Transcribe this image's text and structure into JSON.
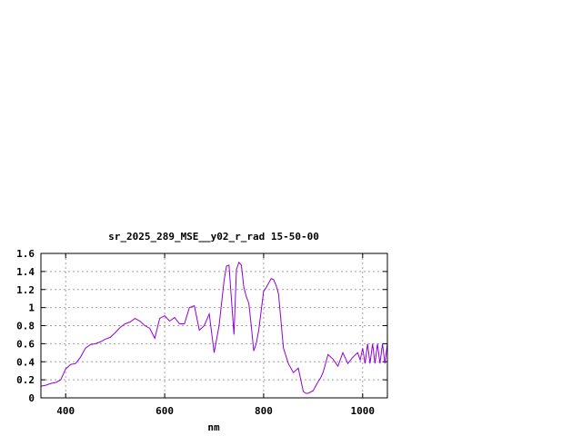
{
  "chart_data": {
    "type": "line",
    "title": "sr_2025_289_MSE__y02_r_rad 15-50-00",
    "xlabel": "nm",
    "ylabel": "",
    "xlim": [
      350,
      1050
    ],
    "ylim": [
      0,
      1.6
    ],
    "xticks": [
      400,
      600,
      800,
      1000
    ],
    "yticks": [
      0,
      0.2,
      0.4,
      0.6,
      0.8,
      1,
      1.2,
      1.4,
      1.6
    ],
    "ytick_labels": [
      "0",
      "0.2",
      "0.4",
      "0.6",
      "0.8",
      "1",
      "1.2",
      "1.4",
      "1.6"
    ],
    "grid": true,
    "line_color": "#9400d3",
    "series": [
      {
        "x": [
          350,
          360,
          370,
          380,
          390,
          400,
          410,
          420,
          430,
          440,
          450,
          460,
          470,
          480,
          490,
          500,
          510,
          520,
          530,
          540,
          550,
          560,
          570,
          580,
          590,
          600,
          610,
          620,
          630,
          640,
          650,
          660,
          670,
          680,
          690,
          700,
          710,
          720,
          725,
          730,
          740,
          745,
          750,
          755,
          760,
          765,
          770,
          775,
          780,
          785,
          790,
          800,
          805,
          810,
          815,
          820,
          825,
          830,
          840,
          850,
          860,
          870,
          880,
          885,
          890,
          900,
          910,
          915,
          920,
          925,
          930,
          940,
          950,
          960,
          970,
          980,
          990,
          995,
          1000,
          1005,
          1010,
          1015,
          1020,
          1025,
          1030,
          1035,
          1040,
          1045,
          1050
        ],
        "values": [
          0.13,
          0.14,
          0.16,
          0.17,
          0.2,
          0.32,
          0.37,
          0.38,
          0.45,
          0.55,
          0.59,
          0.6,
          0.62,
          0.65,
          0.67,
          0.72,
          0.78,
          0.82,
          0.84,
          0.88,
          0.85,
          0.8,
          0.77,
          0.66,
          0.88,
          0.91,
          0.85,
          0.89,
          0.82,
          0.82,
          1.0,
          1.02,
          0.75,
          0.8,
          0.93,
          0.5,
          0.8,
          1.3,
          1.46,
          1.47,
          0.7,
          1.42,
          1.5,
          1.47,
          1.22,
          1.12,
          1.05,
          0.8,
          0.52,
          0.6,
          0.75,
          1.18,
          1.22,
          1.27,
          1.32,
          1.31,
          1.25,
          1.15,
          0.55,
          0.38,
          0.28,
          0.33,
          0.07,
          0.05,
          0.05,
          0.08,
          0.18,
          0.22,
          0.28,
          0.38,
          0.48,
          0.43,
          0.35,
          0.5,
          0.38,
          0.45,
          0.5,
          0.42,
          0.55,
          0.38,
          0.6,
          0.38,
          0.6,
          0.38,
          0.6,
          0.38,
          0.6,
          0.38,
          0.6
        ]
      }
    ]
  }
}
